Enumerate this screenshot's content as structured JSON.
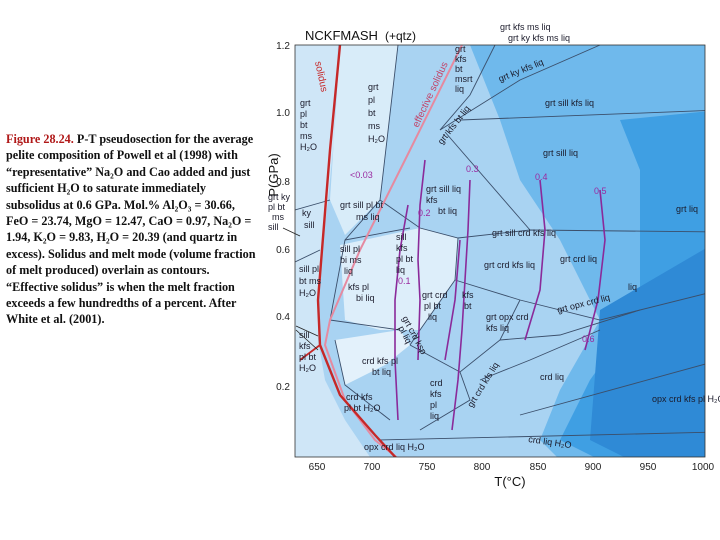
{
  "caption": {
    "figure_label": "Figure 28.24.",
    "text": "P-T pseudosection for the average pelite composition of Powell et al (1998) with “representative” Na₂O and Cao added and just sufficient H₂O to saturate immediately subsolidus at 0.6 GPa. Mol.% Al₂O₃ = 30.66, FeO = 23.74, MgO = 12.47, CaO = 0.97, Na₂O = 1.94, K₂O = 9.83, H₂O = 20.39 (and quartz in excess). Solidus and melt mode (volume fraction of melt produced) overlain as contours. “Effective solidus” is when the melt fraction exceeds a few hundredths of a percent. After White et al. (2001)."
  },
  "diagram": {
    "system_label": "NCKFMASH",
    "qtz_label": "(+qtz)",
    "x_axis": {
      "label": "T(°C)",
      "min": 625,
      "max": 1000,
      "ticks": [
        "650",
        "700",
        "750",
        "800",
        "850",
        "900",
        "950",
        "1000"
      ]
    },
    "y_axis": {
      "label": "P(GPa)",
      "min": 0.05,
      "max": 1.2,
      "ticks": [
        "1.2",
        "1.0",
        "0.8",
        "0.6",
        "0.4",
        "0.2"
      ]
    },
    "curve_labels": {
      "solidus": "solidus",
      "effective_solidus": "effective solidus"
    },
    "melt_contours": [
      "<0.03",
      "0.1",
      "0.2",
      "0.3",
      "0.4",
      "0.5",
      "0.6"
    ],
    "fields": [
      {
        "id": "grt-kfs-ms-liq",
        "lines": [
          "grt kfs ms liq"
        ]
      },
      {
        "id": "grt-ky-kfs-ms-liq",
        "lines": [
          "grt ky kfs ms liq"
        ]
      },
      {
        "id": "grt-kfs-bt-msrt-liq",
        "lines": [
          "grt",
          "kfs",
          "bt",
          "msrt",
          "liq"
        ]
      },
      {
        "id": "grt-ky-kfs-liq",
        "lines": [
          "grt ky kfs liq"
        ]
      },
      {
        "id": "grt-pl-bt-ms-h2o",
        "lines": [
          "grt",
          "pl",
          "bt",
          "ms",
          "H₂O"
        ]
      },
      {
        "id": "grt-pl-bt-ms-h2o-left",
        "lines": [
          "grt",
          "pl",
          "bt",
          "ms",
          "H₂O"
        ]
      },
      {
        "id": "grt-sill-kfs-liq-top",
        "lines": [
          "grt sill kfs liq"
        ]
      },
      {
        "id": "grt-kfs-bt-liq-diag",
        "lines": [
          "grt kfs bt liq"
        ]
      },
      {
        "id": "grt-ky-pl-bt-ms-sill",
        "lines": [
          "grt ky",
          "pl bt",
          "ms",
          "sill"
        ]
      },
      {
        "id": "ky-sill",
        "lines": [
          "ky",
          "sill"
        ]
      },
      {
        "id": "grt-sill-pl-bt-ms-liq",
        "lines": [
          "grt sill pl bt",
          "ms liq"
        ]
      },
      {
        "id": "grt-sill-kfs-bt-liq",
        "lines": [
          "grt sill liq",
          "kfs",
          "bt liq"
        ]
      },
      {
        "id": "grt-sill-liq",
        "lines": [
          "grt sill liq"
        ]
      },
      {
        "id": "grt-liq",
        "lines": [
          "grt liq"
        ]
      },
      {
        "id": "grt-sill-crd-kfs-liq",
        "lines": [
          "grt sill crd kfs liq"
        ]
      },
      {
        "id": "grt-crd-kfs-liq",
        "lines": [
          "grt crd kfs liq"
        ]
      },
      {
        "id": "grt-crd-liq",
        "lines": [
          "grt crd liq"
        ]
      },
      {
        "id": "sill-pl-bi-ms-liq",
        "lines": [
          "sill pl",
          "bi ms",
          "liq"
        ]
      },
      {
        "id": "sill-kfs-pl-bt-liq",
        "lines": [
          "sill",
          "kfs",
          "pl bt",
          "liq"
        ]
      },
      {
        "id": "sill-pl-bt-ms-h2o",
        "lines": [
          "sill pl",
          "bt ms",
          "H₂O"
        ]
      },
      {
        "id": "kfs-pl-bt-bi-liq",
        "lines": [
          "kfs pl",
          "bi liq"
        ]
      },
      {
        "id": "grt-crd-pl-bt-liq",
        "lines": [
          "grt crd",
          "pl bt",
          "liq"
        ]
      },
      {
        "id": "kfs-bt",
        "lines": [
          "kfs",
          "bt"
        ]
      },
      {
        "id": "grt-opx-crd-kfs-liq",
        "lines": [
          "grt opx crd",
          "kfs liq"
        ]
      },
      {
        "id": "grt-opx-crd-liq",
        "lines": [
          "grt opx crd liq"
        ]
      },
      {
        "id": "grt-crd-ksp-pl-liq",
        "lines": [
          "grt crd ksp",
          "pl liq"
        ]
      },
      {
        "id": "grt-crd-kfs-liq-diag",
        "lines": [
          "grt crd kfs liq"
        ]
      },
      {
        "id": "sill-kfs-pl-bt-h2o",
        "lines": [
          "sill",
          "kfs",
          "pl bt",
          "H₂O"
        ]
      },
      {
        "id": "crd-kfs-pl-bt-liq",
        "lines": [
          "crd kfs pl",
          "bt liq"
        ]
      },
      {
        "id": "crd-kfs-pl-bt-liq-2",
        "lines": [
          "crd",
          "kfs",
          "pl",
          "liq"
        ]
      },
      {
        "id": "crd-kfs-pl-bt-h2o",
        "lines": [
          "crd kfs",
          "pl bt H₂O"
        ]
      },
      {
        "id": "opx-crd-liq",
        "lines": [
          "opx crd liq"
        ]
      },
      {
        "id": "crd-liq",
        "lines": [
          "crd liq"
        ]
      },
      {
        "id": "opx-crd-kfs-pl-h2o",
        "lines": [
          "opx crd kfs pl H₂O"
        ]
      },
      {
        "id": "opx-crd-liq-h2o",
        "lines": [
          "opx crd liq H₂O"
        ]
      },
      {
        "id": "crd-liq-h2o",
        "lines": [
          "crd liq H₂O"
        ]
      }
    ]
  }
}
